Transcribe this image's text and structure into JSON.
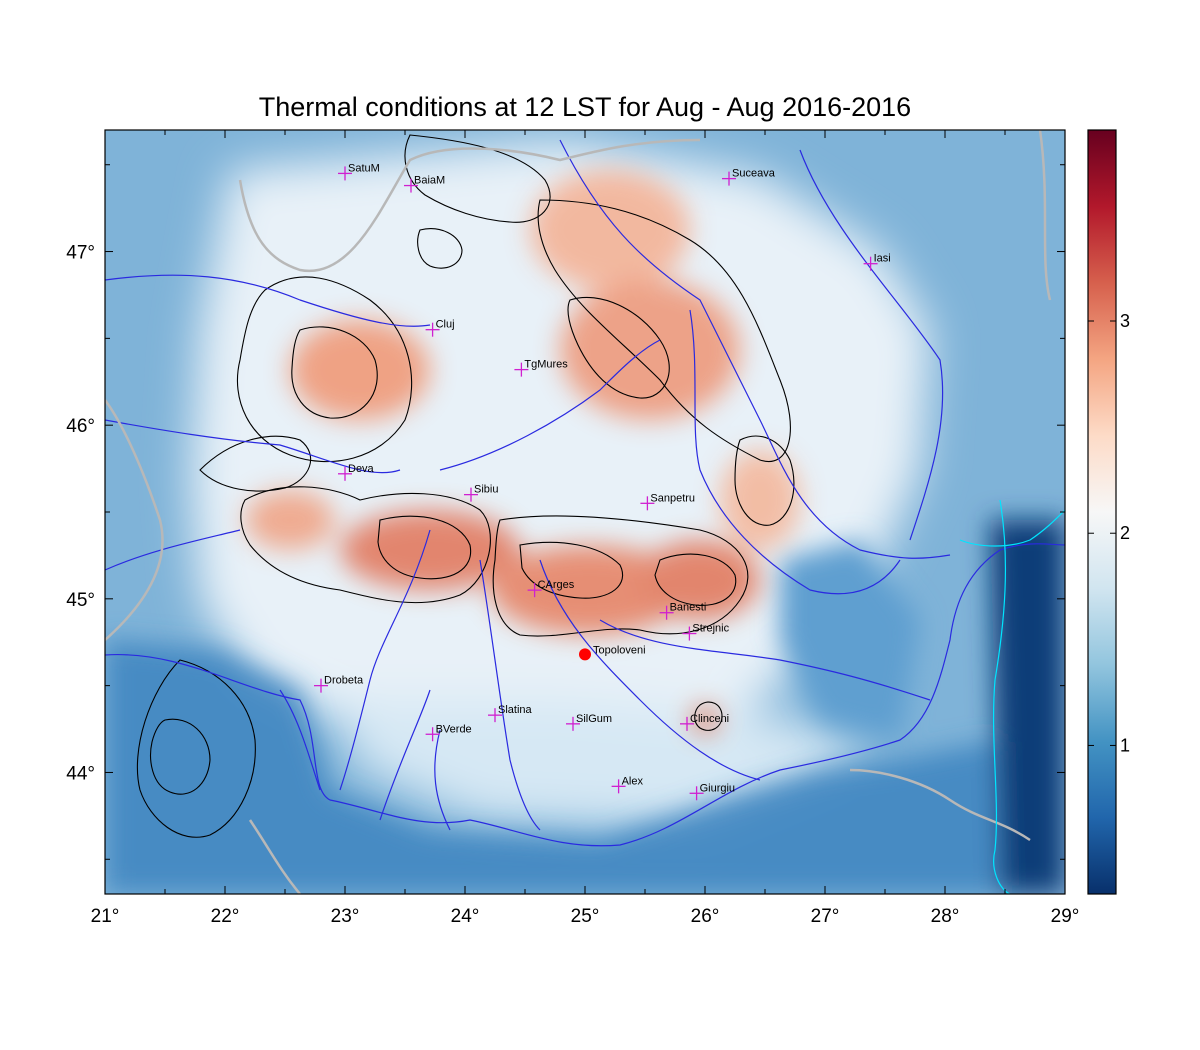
{
  "title": "Thermal conditions at 12 LST for Aug - Aug  2016-2016",
  "map": {
    "lon_range": [
      21,
      29
    ],
    "lat_range": [
      43.3,
      47.7
    ],
    "x_ticks": [
      {
        "value": 21,
        "label": "21°"
      },
      {
        "value": 22,
        "label": "22°"
      },
      {
        "value": 23,
        "label": "23°"
      },
      {
        "value": 24,
        "label": "24°"
      },
      {
        "value": 25,
        "label": "25°"
      },
      {
        "value": 26,
        "label": "26°"
      },
      {
        "value": 27,
        "label": "27°"
      },
      {
        "value": 28,
        "label": "28°"
      },
      {
        "value": 29,
        "label": "29°"
      }
    ],
    "y_ticks": [
      {
        "value": 44,
        "label": "44°"
      },
      {
        "value": 45,
        "label": "45°"
      },
      {
        "value": 46,
        "label": "46°"
      },
      {
        "value": 47,
        "label": "47°"
      }
    ],
    "stations": [
      {
        "name": "SatuM",
        "lon": 23.0,
        "lat": 47.45
      },
      {
        "name": "BaiaM",
        "lon": 23.55,
        "lat": 47.38
      },
      {
        "name": "Suceava",
        "lon": 26.2,
        "lat": 47.42
      },
      {
        "name": "Iasi",
        "lon": 27.38,
        "lat": 46.93
      },
      {
        "name": "Cluj",
        "lon": 23.73,
        "lat": 46.55
      },
      {
        "name": "TgMures",
        "lon": 24.47,
        "lat": 46.32
      },
      {
        "name": "Deva",
        "lon": 23.0,
        "lat": 45.72
      },
      {
        "name": "Sibiu",
        "lon": 24.05,
        "lat": 45.6
      },
      {
        "name": "Sanpetru",
        "lon": 25.52,
        "lat": 45.55
      },
      {
        "name": "CArges",
        "lon": 24.58,
        "lat": 45.05
      },
      {
        "name": "Banesti",
        "lon": 25.68,
        "lat": 44.92
      },
      {
        "name": "Strejnic",
        "lon": 25.87,
        "lat": 44.8
      },
      {
        "name": "Drobeta",
        "lon": 22.8,
        "lat": 44.5
      },
      {
        "name": "Slatina",
        "lon": 24.25,
        "lat": 44.33
      },
      {
        "name": "SilGum",
        "lon": 24.9,
        "lat": 44.28
      },
      {
        "name": "Clinceni",
        "lon": 25.85,
        "lat": 44.28
      },
      {
        "name": "BVerde",
        "lon": 23.73,
        "lat": 44.22
      },
      {
        "name": "Alex",
        "lon": 25.28,
        "lat": 43.92
      },
      {
        "name": "Giurgiu",
        "lon": 25.93,
        "lat": 43.88
      }
    ],
    "highlight_station": {
      "name": "Topoloveni",
      "lon": 25.0,
      "lat": 44.68,
      "color": "#ff0000"
    },
    "station_marker_color": "#d020d0"
  },
  "colorbar": {
    "min": 0.3,
    "max": 3.9,
    "ticks": [
      {
        "value": 1,
        "label": "1"
      },
      {
        "value": 2,
        "label": "2"
      },
      {
        "value": 3,
        "label": "3"
      }
    ],
    "colors": [
      "#08306b",
      "#2166ac",
      "#4393c3",
      "#92c5de",
      "#d1e5f0",
      "#f7f7f7",
      "#fddbc7",
      "#f4a582",
      "#d6604d",
      "#b2182b",
      "#67001f"
    ]
  }
}
